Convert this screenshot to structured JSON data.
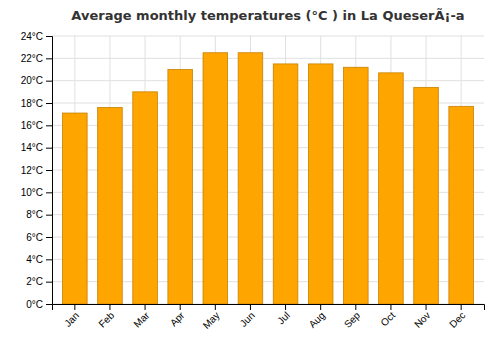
{
  "chart_data": {
    "type": "bar",
    "title": "Average monthly temperatures (°C ) in La QueserÃ¡-a",
    "categories": [
      "Jan",
      "Feb",
      "Mar",
      "Apr",
      "May",
      "Jun",
      "Jul",
      "Aug",
      "Sep",
      "Oct",
      "Nov",
      "Dec"
    ],
    "values": [
      17.1,
      17.6,
      19.0,
      21.0,
      22.5,
      22.5,
      21.5,
      21.5,
      21.2,
      20.7,
      19.4,
      17.7
    ],
    "color": "#FFA500",
    "ylim": [
      0,
      24
    ],
    "yticks": [
      {
        "value": 0,
        "label": "0°C"
      },
      {
        "value": 2,
        "label": "2°C"
      },
      {
        "value": 4,
        "label": "4°C"
      },
      {
        "value": 6,
        "label": "6°C"
      },
      {
        "value": 8,
        "label": "8°C"
      },
      {
        "value": 10,
        "label": "10°C"
      },
      {
        "value": 12,
        "label": "12°C"
      },
      {
        "value": 14,
        "label": "14°C"
      },
      {
        "value": 16,
        "label": "16°C"
      },
      {
        "value": 18,
        "label": "18°C"
      },
      {
        "value": 20,
        "label": "20°C"
      },
      {
        "value": 22,
        "label": "22°C"
      },
      {
        "value": 24,
        "label": "24°C"
      }
    ],
    "grid": true
  }
}
